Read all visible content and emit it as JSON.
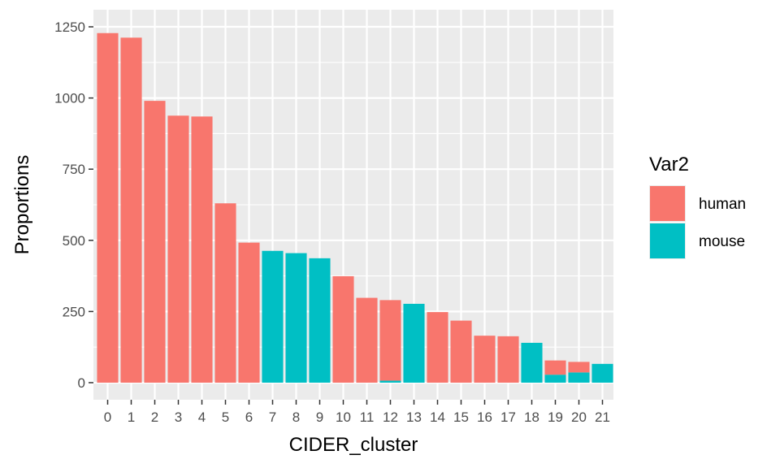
{
  "chart_data": {
    "type": "bar",
    "stacked": true,
    "xlabel": "CIDER_cluster",
    "ylabel": "Proportions",
    "ylim": [
      0,
      1300
    ],
    "yticks": [
      0,
      250,
      500,
      750,
      1000,
      1250
    ],
    "categories": [
      "0",
      "1",
      "2",
      "3",
      "4",
      "5",
      "6",
      "7",
      "8",
      "9",
      "10",
      "11",
      "12",
      "13",
      "14",
      "15",
      "16",
      "17",
      "18",
      "19",
      "20",
      "21"
    ],
    "series": [
      {
        "name": "human",
        "color": "#F8766D",
        "values": [
          1228,
          1212,
          990,
          938,
          935,
          630,
          492,
          0,
          0,
          0,
          374,
          298,
          283,
          0,
          248,
          218,
          165,
          163,
          0,
          50,
          37,
          0
        ]
      },
      {
        "name": "mouse",
        "color": "#00BFC4",
        "values": [
          0,
          0,
          0,
          0,
          0,
          0,
          0,
          463,
          455,
          437,
          0,
          0,
          7,
          277,
          0,
          0,
          0,
          0,
          140,
          28,
          36,
          66
        ]
      }
    ],
    "legend": {
      "title": "Var2",
      "position": "right"
    },
    "grid": true,
    "panel_background": "#EBEBEB"
  }
}
